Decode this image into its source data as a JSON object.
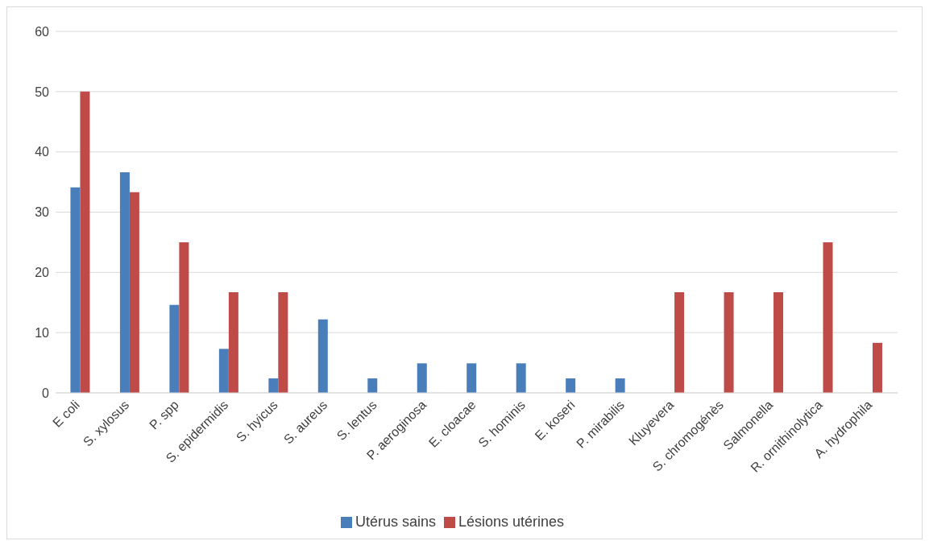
{
  "chart_data": {
    "type": "bar",
    "categories": [
      "E coli",
      "S. xylosus",
      "P. spp",
      "S. epidermidis",
      "S. hyicus",
      "S. aureus",
      "S. lentus",
      "P. aeroginosa",
      "E. cloacae",
      "S. hominis",
      "E. koseri",
      "P. mirabilis",
      "Kluyevera",
      "S. chromogénès",
      "Salmonella",
      "R. ornithinolytica",
      "A. hydrophila"
    ],
    "series": [
      {
        "name": "Utérus sains",
        "color": "#4a7ebb",
        "values": [
          34.1,
          36.6,
          14.6,
          7.3,
          2.4,
          12.2,
          2.4,
          4.9,
          4.9,
          4.9,
          2.4,
          2.4,
          null,
          null,
          null,
          null,
          null
        ]
      },
      {
        "name": "Lésions utérines",
        "color": "#be4b48",
        "values": [
          50,
          33.3,
          25,
          16.7,
          16.7,
          null,
          null,
          null,
          null,
          null,
          null,
          null,
          16.7,
          16.7,
          16.7,
          25,
          8.3
        ]
      }
    ],
    "ylim": [
      0,
      60
    ],
    "yticks": [
      0,
      10,
      20,
      30,
      40,
      50,
      60
    ],
    "grid": "y",
    "legend": "bottom"
  }
}
